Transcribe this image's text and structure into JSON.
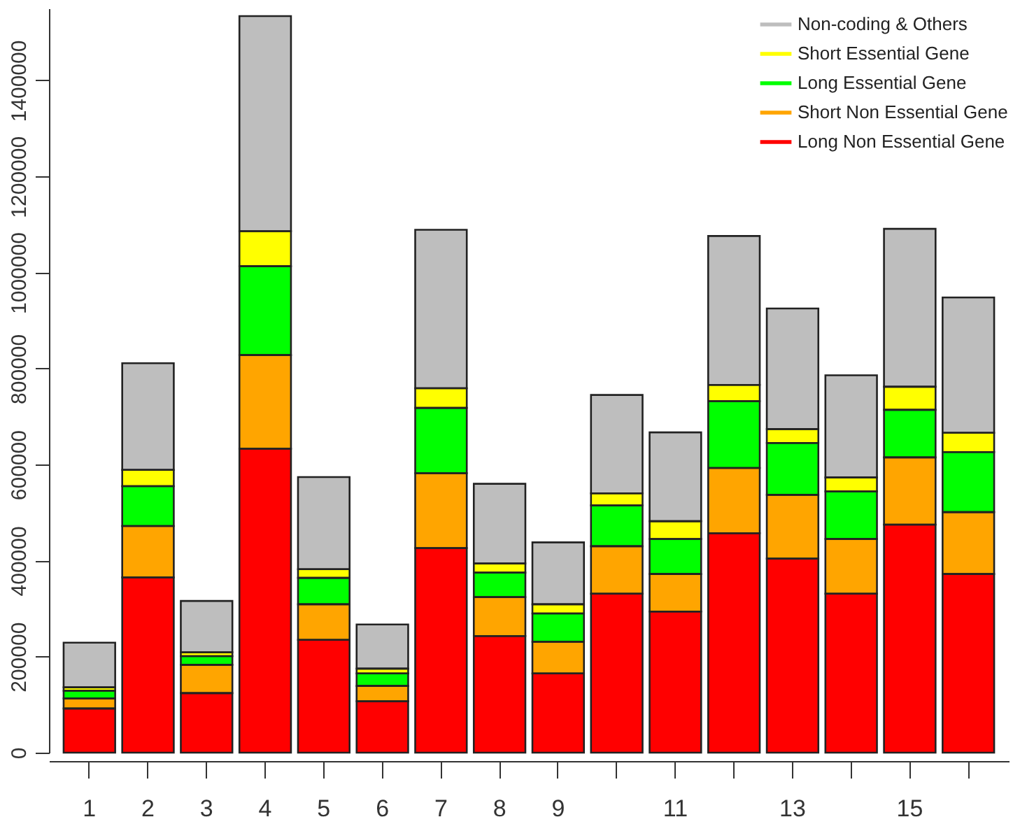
{
  "chart_data": {
    "type": "bar",
    "stacked": true,
    "categories": [
      "1",
      "2",
      "3",
      "4",
      "5",
      "6",
      "7",
      "8",
      "9",
      null,
      "11",
      null,
      "13",
      null,
      "15",
      null
    ],
    "series": [
      {
        "name": "Long Non Essential Gene",
        "color": "#ff0000",
        "values": [
          92000,
          365000,
          124000,
          633000,
          235000,
          107000,
          426000,
          243000,
          165000,
          331000,
          294000,
          457000,
          404000,
          331000,
          475000,
          372000
        ]
      },
      {
        "name": "Short Non Essential Gene",
        "color": "#ffa500",
        "values": [
          21000,
          107000,
          59000,
          195000,
          74000,
          32000,
          156000,
          81000,
          66000,
          99000,
          78000,
          136000,
          133000,
          114000,
          140000,
          129000
        ]
      },
      {
        "name": "Long Essential Gene",
        "color": "#00ff00",
        "values": [
          16000,
          83000,
          18000,
          185000,
          55000,
          26000,
          136000,
          51000,
          59000,
          85000,
          73000,
          139000,
          108000,
          99000,
          99000,
          125000
        ]
      },
      {
        "name": "Short Essential Gene",
        "color": "#ffff00",
        "values": [
          7000,
          34000,
          8000,
          73000,
          18000,
          10000,
          41000,
          19000,
          19000,
          25000,
          37000,
          34000,
          29000,
          29000,
          48000,
          40000
        ]
      },
      {
        "name": "Non-coding & Others",
        "color": "#bebebe",
        "values": [
          93000,
          222000,
          107000,
          448000,
          192000,
          92000,
          330000,
          166000,
          129000,
          205000,
          185000,
          310000,
          251000,
          213000,
          329000,
          282000
        ]
      }
    ],
    "ylim": [
      0,
      1550000
    ],
    "yticks": [
      0,
      200000,
      400000,
      600000,
      800000,
      1000000,
      1200000,
      1400000
    ],
    "grid": false,
    "legend": "top right"
  }
}
